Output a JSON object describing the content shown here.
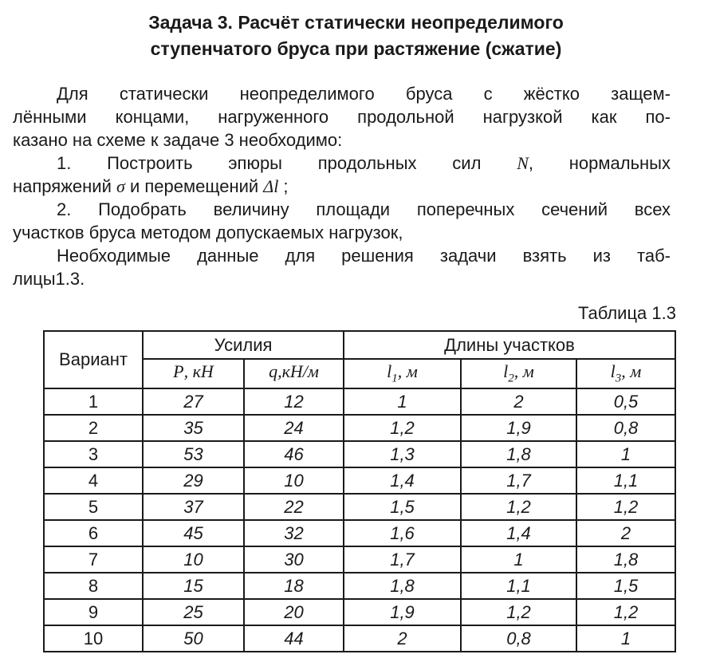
{
  "colors": {
    "background": "#ffffff",
    "text": "#1a1a1a",
    "table_border": "#1a1a1a"
  },
  "title": {
    "line1": "Задача 3. Расчёт статически неопределимого",
    "line2": "ступенчатого бруса при растяжение (сжатие)"
  },
  "body": {
    "p1_l1": "Для статически неопределимого бруса с жёстко защем-",
    "p1_l2": "лёнными концами, нагруженного продольной нагрузкой как по-",
    "p1_l3": "казано на схеме к задаче 3 необходимо:",
    "it1_l1a": "1. Построить эпюры продольных сил ",
    "it1_l1b": "N",
    "it1_l1c": ", нормальных",
    "it1_l2a": "напряжений ",
    "it1_l2b": "σ",
    "it1_l2c": " и перемещений ",
    "it1_l2d": "Δl",
    "it1_l2e": " ;",
    "it2_l1": "2. Подобрать величину площади поперечных сечений всех",
    "it2_l2": "участков бруса методом допускаемых нагрузок,",
    "p2_l1": "Необходимые данные для решения задачи взять из таб-",
    "p2_l2": "лицы1.3."
  },
  "table": {
    "caption": "Таблица 1.3",
    "headers": {
      "variant": "Вариант",
      "forces": "Усилия",
      "lengths": "Длины участков"
    },
    "subheaders": [
      {
        "sym": "P",
        "sub": "",
        "unit": ", кН"
      },
      {
        "sym": "q",
        "sub": "",
        "unit": ",кН/м"
      },
      {
        "sym": "l",
        "sub": "1",
        "unit": ", м"
      },
      {
        "sym": "l",
        "sub": "2",
        "unit": ", м"
      },
      {
        "sym": "l",
        "sub": "3",
        "unit": ", м"
      }
    ],
    "rows": [
      [
        "1",
        "27",
        "12",
        "1",
        "2",
        "0,5"
      ],
      [
        "2",
        "35",
        "24",
        "1,2",
        "1,9",
        "0,8"
      ],
      [
        "3",
        "53",
        "46",
        "1,3",
        "1,8",
        "1"
      ],
      [
        "4",
        "29",
        "10",
        "1,4",
        "1,7",
        "1,1"
      ],
      [
        "5",
        "37",
        "22",
        "1,5",
        "1,2",
        "1,2"
      ],
      [
        "6",
        "45",
        "32",
        "1,6",
        "1,4",
        "2"
      ],
      [
        "7",
        "10",
        "30",
        "1,7",
        "1",
        "1,8"
      ],
      [
        "8",
        "15",
        "18",
        "1,8",
        "1,1",
        "1,5"
      ],
      [
        "9",
        "25",
        "20",
        "1,9",
        "1,2",
        "1,2"
      ],
      [
        "10",
        "50",
        "44",
        "2",
        "0,8",
        "1"
      ]
    ]
  }
}
